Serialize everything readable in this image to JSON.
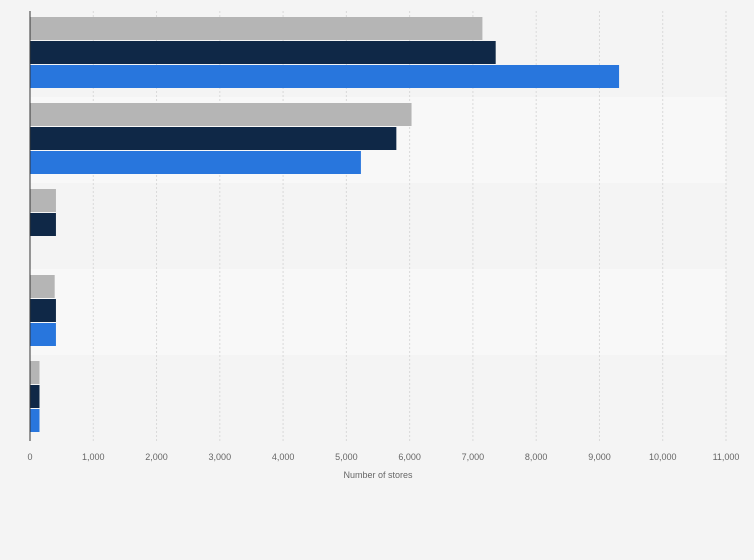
{
  "chart_data": {
    "type": "bar",
    "orientation": "horizontal",
    "title": "",
    "xlabel": "Number of stores",
    "ylabel": "",
    "xlim": [
      0,
      11000
    ],
    "x_ticks": [
      0,
      1000,
      2000,
      3000,
      4000,
      5000,
      6000,
      7000,
      8000,
      9000,
      10000,
      11000
    ],
    "x_tick_labels": [
      "0",
      "1,000",
      "2,000",
      "3,000",
      "4,000",
      "5,000",
      "6,000",
      "7,000",
      "8,000",
      "9,000",
      "10,000",
      "11,000"
    ],
    "grid": true,
    "legend": "none",
    "categories": [
      "",
      "",
      "",
      "",
      ""
    ],
    "series": [
      {
        "color": "#b5b5b5",
        "values": [
          7150,
          6030,
          410,
          390,
          150
        ]
      },
      {
        "color": "#0f2847",
        "values": [
          7360,
          5790,
          410,
          410,
          150
        ]
      },
      {
        "color": "#2876dd",
        "values": [
          9310,
          5230,
          null,
          410,
          150
        ]
      }
    ]
  },
  "colors": {
    "background": "#f4f4f4",
    "band_light": "#f8f8f8",
    "gridline": "#d9d9d9",
    "axis": "#333333"
  }
}
